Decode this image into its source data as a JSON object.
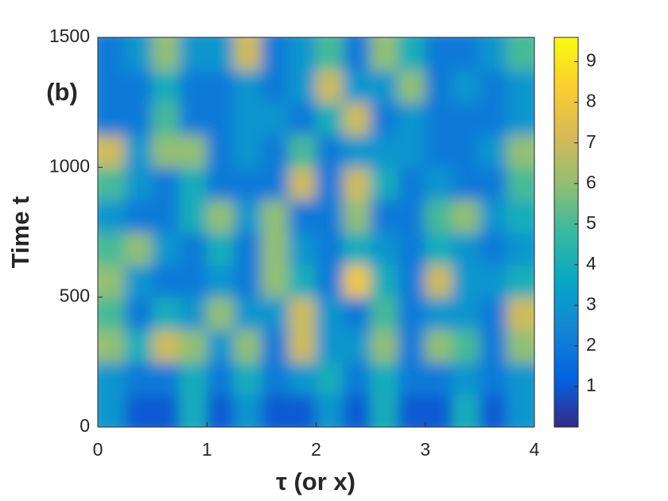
{
  "chart_data": {
    "type": "heatmap",
    "label": "(b)",
    "xlabel": "τ (or x)",
    "ylabel": "Time t",
    "xlim": [
      0,
      4
    ],
    "xticks": [
      0,
      1,
      2,
      3,
      4
    ],
    "ylim": [
      0,
      1500
    ],
    "yticks": [
      0,
      500,
      1000,
      1500
    ],
    "clim": [
      0,
      9.6
    ],
    "cticks": [
      1,
      2,
      3,
      4,
      5,
      6,
      7,
      8,
      9
    ],
    "colormap": "parula",
    "z": [
      [
        3,
        1,
        1,
        4,
        1,
        3,
        1,
        1,
        3,
        1,
        4,
        1,
        1,
        4,
        1,
        3
      ],
      [
        3,
        2,
        2,
        4,
        2,
        4,
        2,
        3,
        4,
        2,
        4,
        2,
        2,
        3,
        2,
        3
      ],
      [
        6,
        4,
        7,
        6,
        3,
        6,
        2,
        7,
        3,
        3,
        6,
        2,
        6,
        5,
        2,
        6
      ],
      [
        5,
        2,
        4,
        3,
        6,
        3,
        3,
        7,
        3,
        2,
        5,
        2,
        3,
        3,
        2,
        7
      ],
      [
        6,
        3,
        2,
        2,
        3,
        2,
        6,
        4,
        2,
        8,
        4,
        2,
        7,
        3,
        3,
        4
      ],
      [
        5,
        6,
        3,
        2,
        4,
        2,
        6,
        3,
        2,
        4,
        3,
        2,
        4,
        3,
        2,
        3
      ],
      [
        3,
        2,
        2,
        4,
        6,
        3,
        6,
        2,
        2,
        6,
        2,
        2,
        5,
        6,
        3,
        4
      ],
      [
        5,
        3,
        2,
        4,
        2,
        2,
        2,
        7,
        2,
        7,
        4,
        2,
        3,
        2,
        2,
        5
      ],
      [
        7,
        3,
        6,
        6,
        2,
        3,
        2,
        5,
        2,
        3,
        3,
        3,
        2,
        2,
        3,
        6
      ],
      [
        2,
        2,
        5,
        2,
        2,
        3,
        3,
        2,
        4,
        7,
        2,
        3,
        2,
        2,
        2,
        3
      ],
      [
        2,
        2,
        4,
        2,
        2,
        3,
        2,
        3,
        7,
        3,
        3,
        6,
        2,
        3,
        2,
        3
      ],
      [
        2,
        3,
        6,
        3,
        3,
        7,
        2,
        3,
        5,
        2,
        6,
        4,
        2,
        2,
        3,
        5
      ]
    ]
  }
}
